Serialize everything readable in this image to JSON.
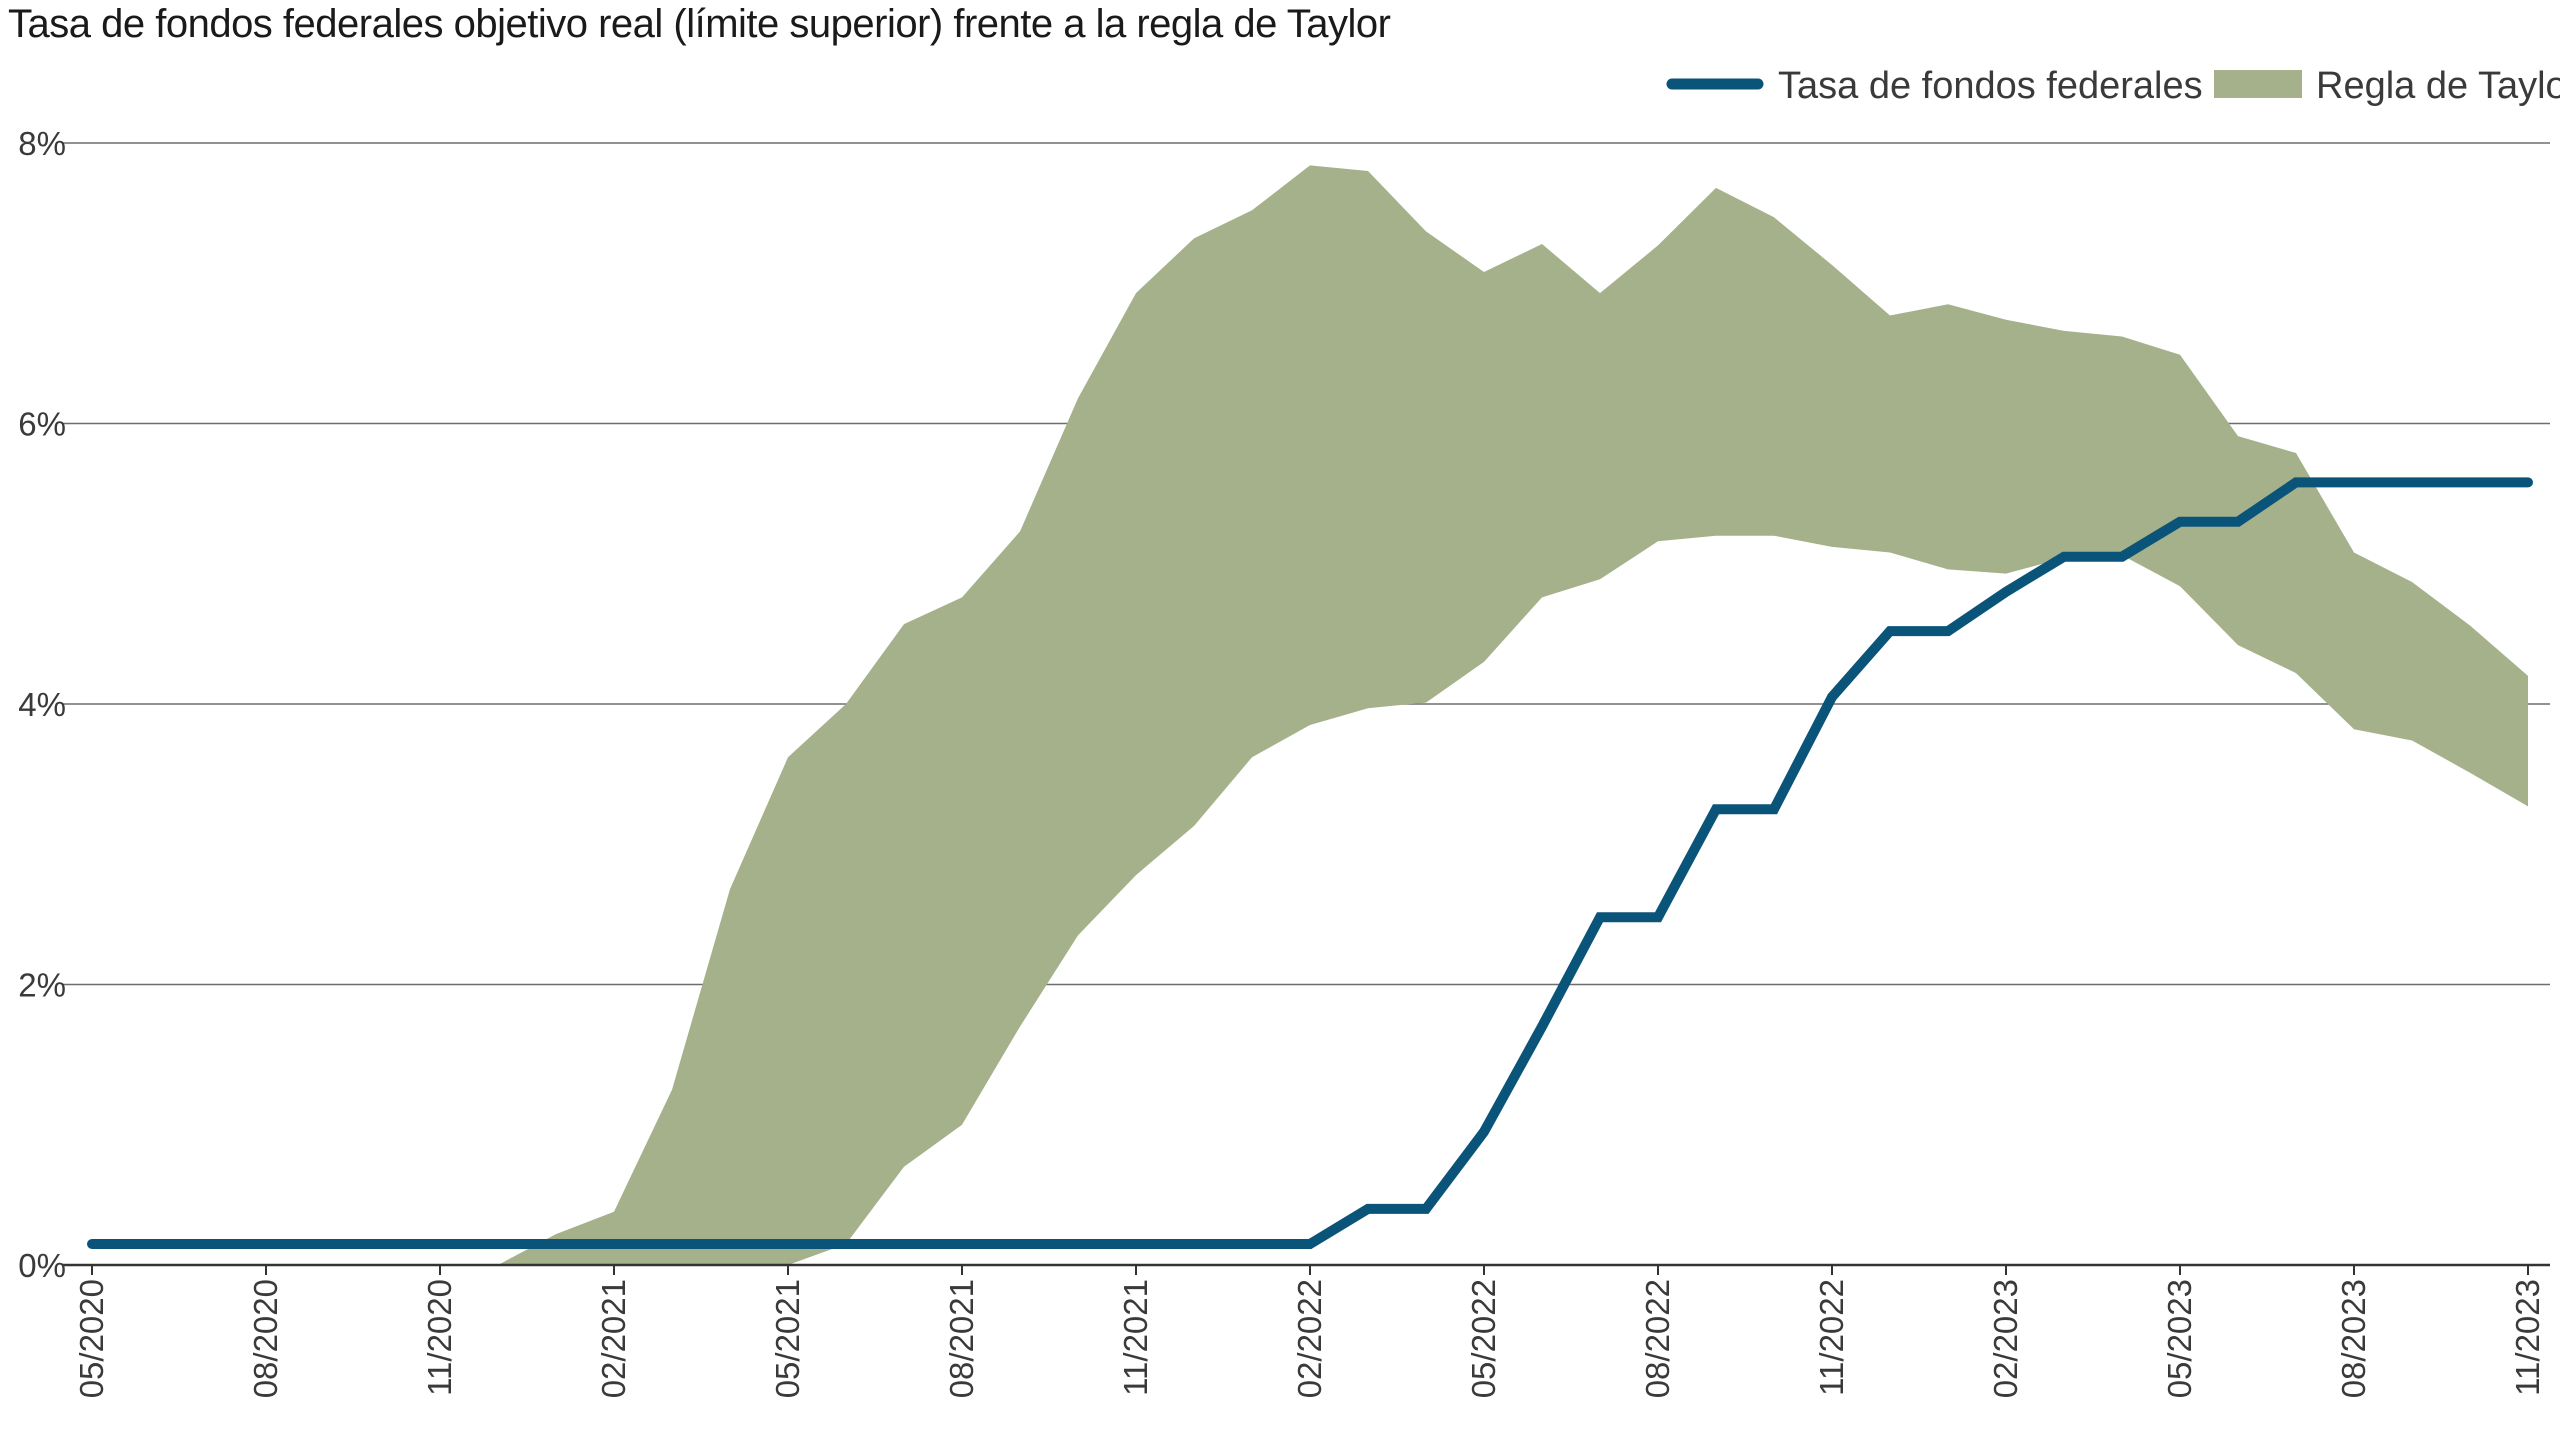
{
  "chart_data": {
    "type": "area",
    "title": "Tasa de fondos federales objetivo real (límite superior) frente a la regla de Taylor",
    "xlabel": "",
    "ylabel": "",
    "x_ticks": [
      "05/2020",
      "08/2020",
      "11/2020",
      "02/2021",
      "05/2021",
      "08/2021",
      "11/2021",
      "02/2022",
      "05/2022",
      "08/2022",
      "11/2022",
      "02/2023",
      "05/2023",
      "08/2023",
      "11/2023"
    ],
    "y_ticks": [
      "0%",
      "2%",
      "4%",
      "6%",
      "8%"
    ],
    "ylim": [
      0,
      8
    ],
    "y_unit": "%",
    "grid": "horizontal",
    "legend_position": "top-right",
    "x": [
      "05/2020",
      "06/2020",
      "07/2020",
      "08/2020",
      "09/2020",
      "10/2020",
      "11/2020",
      "12/2020",
      "01/2021",
      "02/2021",
      "03/2021",
      "04/2021",
      "05/2021",
      "06/2021",
      "07/2021",
      "08/2021",
      "09/2021",
      "10/2021",
      "11/2021",
      "12/2021",
      "01/2022",
      "02/2022",
      "03/2022",
      "04/2022",
      "05/2022",
      "06/2022",
      "07/2022",
      "08/2022",
      "09/2022",
      "10/2022",
      "11/2022",
      "12/2022",
      "01/2023",
      "02/2023",
      "03/2023",
      "04/2023",
      "05/2023",
      "06/2023",
      "07/2023",
      "08/2023",
      "09/2023",
      "10/2023",
      "11/2023"
    ],
    "series": [
      {
        "name": "Tasa de fondos federales",
        "type": "line",
        "color": "#0b5479",
        "values": [
          0.15,
          0.15,
          0.15,
          0.15,
          0.15,
          0.15,
          0.15,
          0.15,
          0.15,
          0.15,
          0.15,
          0.15,
          0.15,
          0.15,
          0.15,
          0.15,
          0.15,
          0.15,
          0.15,
          0.15,
          0.15,
          0.15,
          0.4,
          0.4,
          0.95,
          1.7,
          2.48,
          2.48,
          3.25,
          3.25,
          4.05,
          4.52,
          4.52,
          4.8,
          5.05,
          5.05,
          5.3,
          5.3,
          5.58,
          5.58,
          5.58,
          5.58,
          5.58
        ]
      },
      {
        "name": "Regla de Taylor",
        "type": "band",
        "color": "#a5b18b",
        "upper": [
          null,
          null,
          null,
          null,
          null,
          null,
          null,
          0.0,
          0.22,
          0.38,
          1.25,
          2.68,
          3.62,
          4.0,
          4.57,
          4.76,
          5.23,
          6.18,
          6.93,
          7.32,
          7.52,
          7.84,
          7.8,
          7.37,
          7.08,
          7.28,
          6.93,
          7.27,
          7.68,
          7.47,
          7.13,
          6.77,
          6.85,
          6.74,
          6.66,
          6.62,
          6.49,
          5.91,
          5.79,
          5.08,
          4.87,
          4.56,
          4.2
        ],
        "lower": [
          null,
          null,
          null,
          null,
          null,
          null,
          null,
          0.0,
          0.0,
          0.0,
          0.0,
          0.0,
          0.0,
          0.15,
          0.7,
          1.0,
          1.7,
          2.35,
          2.78,
          3.13,
          3.62,
          3.85,
          3.97,
          4.01,
          4.3,
          4.76,
          4.89,
          5.16,
          5.2,
          5.2,
          5.12,
          5.08,
          4.96,
          4.93,
          5.04,
          5.06,
          4.84,
          4.42,
          4.22,
          3.82,
          3.74,
          3.51,
          3.27
        ]
      }
    ]
  }
}
